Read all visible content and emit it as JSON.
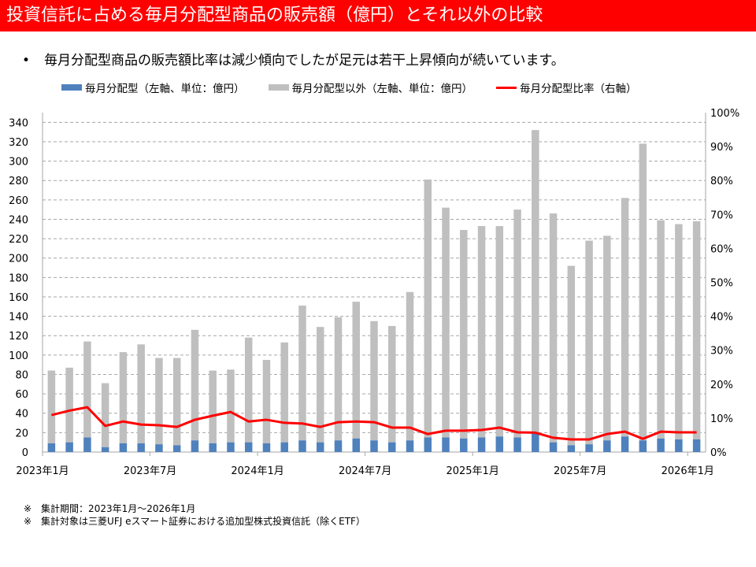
{
  "title": "投資信託に占める毎月分配型商品の販売額（億円）とそれ以外の比較",
  "bullet": "毎月分配型商品の販売額比率は減少傾向でしたが足元は若干上昇傾向が続いています。",
  "notes": [
    "※　集計期間：2023年1月～2026年1月",
    "※　集計対象は三菱UFJ eスマート証券における追加型株式投資信託（除くETF）"
  ],
  "chart_data": {
    "type": "bar",
    "stacked": true,
    "legend_position": "top",
    "grid": true,
    "colors": {
      "monthly": "#4f81bd",
      "other": "#bfbfbf",
      "ratio": "#ff0000"
    },
    "x_tick_labels": [
      "2023年1月",
      "2023年7月",
      "2024年1月",
      "2024年7月",
      "2025年1月",
      "2025年7月",
      "2026年1月"
    ],
    "y_left": {
      "ticks": [
        0,
        20,
        40,
        60,
        80,
        100,
        120,
        140,
        160,
        180,
        200,
        220,
        240,
        260,
        280,
        300,
        320,
        340
      ],
      "range": [
        0,
        350
      ]
    },
    "y_right": {
      "ticks": [
        "0%",
        "10%",
        "20%",
        "30%",
        "40%",
        "50%",
        "60%",
        "70%",
        "80%",
        "90%",
        "100%"
      ],
      "range": [
        0,
        100
      ]
    },
    "series": [
      {
        "name": "毎月分配型（左軸、単位：億円）",
        "values": [
          9,
          10,
          15,
          5,
          9,
          9,
          8,
          7,
          12,
          9,
          10,
          10,
          9,
          10,
          12,
          10,
          12,
          14,
          12,
          10,
          12,
          15,
          15,
          14,
          15,
          16,
          15,
          19,
          10,
          7,
          8,
          12,
          16,
          12,
          14,
          13,
          13
        ]
      },
      {
        "name": "毎月分配型以外（左軸、単位：億円）",
        "values": [
          75,
          77,
          99,
          66,
          94,
          102,
          89,
          90,
          114,
          75,
          75,
          108,
          86,
          103,
          139,
          119,
          127,
          141,
          123,
          120,
          153,
          266,
          237,
          215,
          218,
          217,
          235,
          313,
          236,
          185,
          210,
          211,
          246,
          306,
          225,
          222,
          225
        ]
      },
      {
        "name": "毎月分配型比率（右軸）",
        "values": [
          10.9,
          12.2,
          13.2,
          7.7,
          9.0,
          8.1,
          7.9,
          7.4,
          9.5,
          10.7,
          11.8,
          9.0,
          9.5,
          8.6,
          8.4,
          7.4,
          8.8,
          9.0,
          8.8,
          7.2,
          7.2,
          5.3,
          6.3,
          6.3,
          6.5,
          7.2,
          5.8,
          5.7,
          4.2,
          3.7,
          3.7,
          5.3,
          6.0,
          3.9,
          6.0,
          5.8,
          5.8
        ]
      }
    ]
  }
}
